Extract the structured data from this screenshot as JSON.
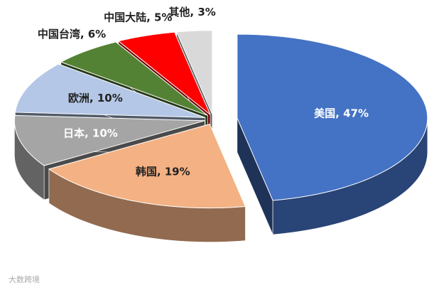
{
  "chart_data": {
    "type": "pie3d",
    "values": [
      47,
      19,
      10,
      10,
      6,
      5,
      3
    ],
    "value_labels": [
      "美国, 47%",
      "韩国, 19%",
      "日本, 10%",
      "欧洲, 10%",
      "中国台湾, 6%",
      "中国大陆, 5%",
      "其他, 3%"
    ],
    "colors": [
      "#4472c4",
      "#f4b183",
      "#a5a5a5",
      "#b4c7e7",
      "#548235",
      "#ff0000",
      "#d9d9d9"
    ],
    "watermark": "大数跨境"
  }
}
